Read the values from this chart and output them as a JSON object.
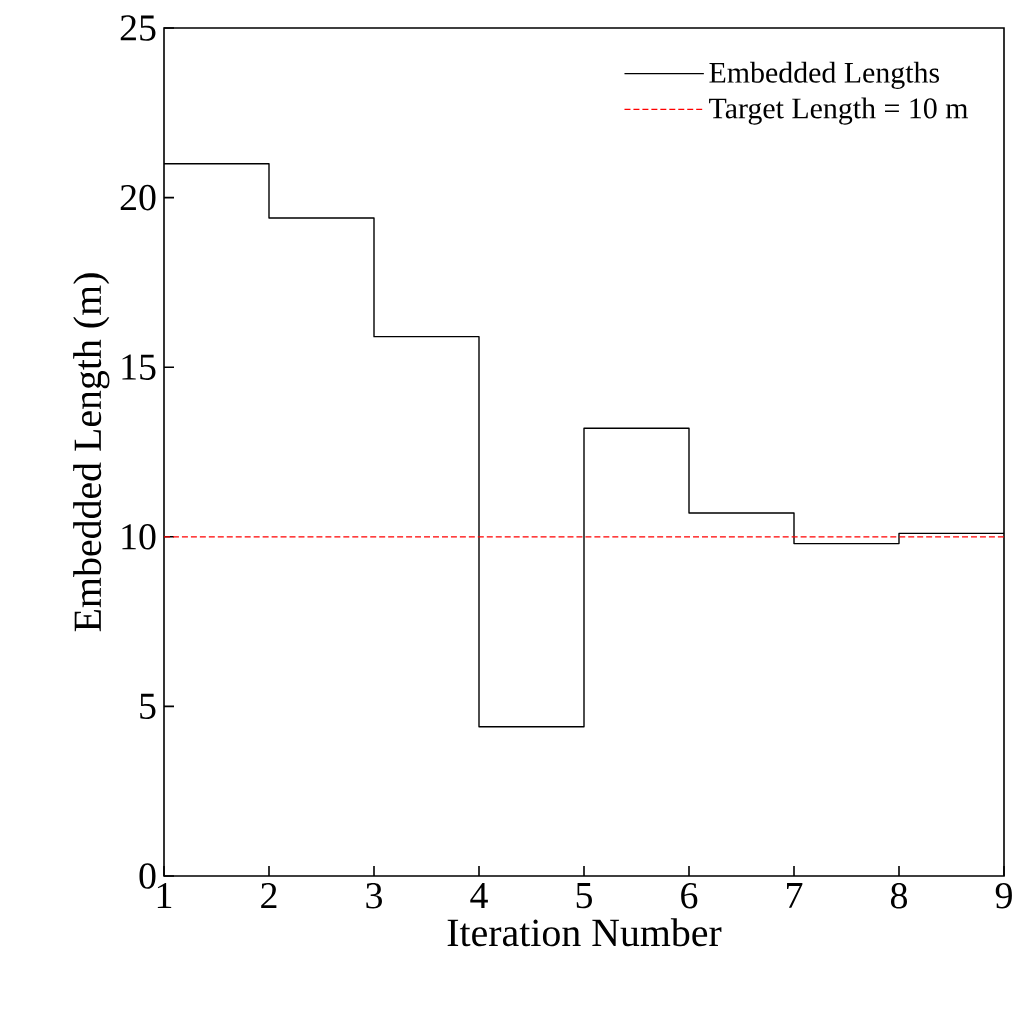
{
  "chart_data": {
    "type": "step",
    "xlabel": "Iteration Number",
    "ylabel": "Embedded Length (m)",
    "x": [
      1,
      2,
      3,
      4,
      5,
      6,
      7,
      8,
      9
    ],
    "series": [
      {
        "name": "Embedded Lengths",
        "color": "#000000",
        "values": [
          21,
          19.4,
          15.9,
          4.4,
          13.2,
          10.7,
          9.8,
          10.1,
          10.1
        ]
      }
    ],
    "ref_lines": [
      {
        "axis": "y",
        "value": 10,
        "label": "Target Length = 10 m",
        "color": "#ff0000",
        "line_style": "dashed"
      }
    ],
    "xlim": [
      1,
      9
    ],
    "xticks": [
      1,
      2,
      3,
      4,
      5,
      6,
      7,
      8,
      9
    ],
    "ylim": [
      0,
      25
    ],
    "yticks": [
      0,
      5,
      10,
      15,
      20,
      25
    ],
    "grid": false,
    "legend": "top right"
  }
}
